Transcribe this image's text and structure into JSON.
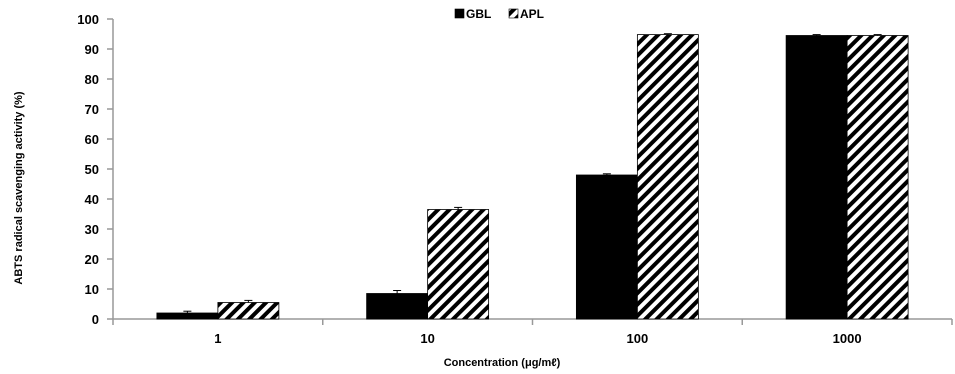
{
  "chart_data": {
    "type": "bar",
    "xlabel": "Concentration (μg/mℓ)",
    "ylabel": "ABTS radical scavenging activity (%)",
    "ylim": [
      0,
      100
    ],
    "yticks": [
      0,
      10,
      20,
      30,
      40,
      50,
      60,
      70,
      80,
      90,
      100
    ],
    "categories": [
      "1",
      "10",
      "100",
      "1000"
    ],
    "series": [
      {
        "name": "GBL",
        "values": [
          2,
          8.5,
          48,
          94.5
        ],
        "errors": [
          0.6,
          1.0,
          0.4,
          0.3
        ],
        "fill": "solid",
        "color": "#000000"
      },
      {
        "name": "APL",
        "values": [
          5.5,
          36.5,
          94.8,
          94.5
        ],
        "errors": [
          0.7,
          0.7,
          0.3,
          0.3
        ],
        "fill": "diagonal-hatch",
        "color": "#000000"
      }
    ],
    "legend_position": "top-center",
    "grid": false
  }
}
